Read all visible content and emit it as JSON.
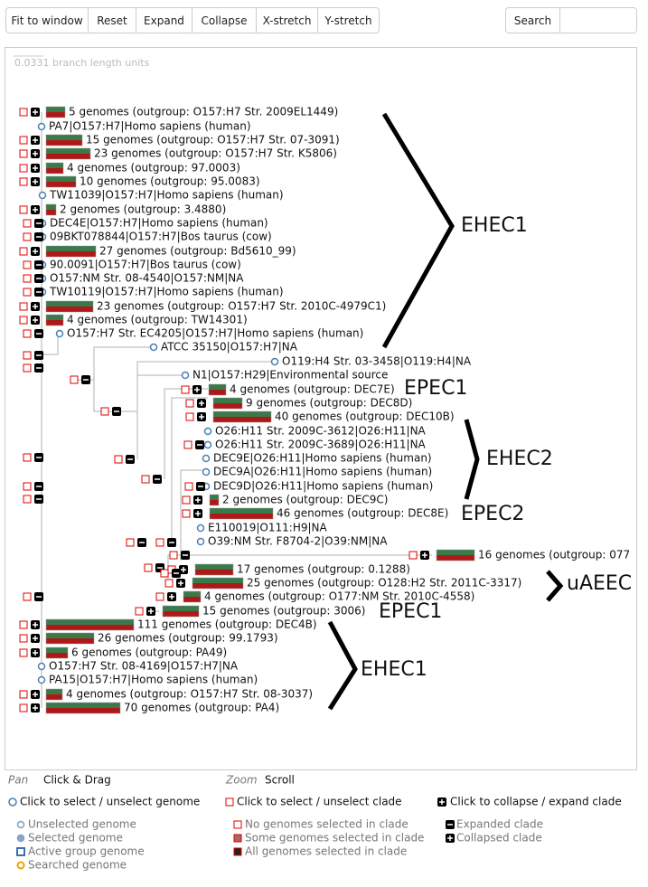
{
  "toolbar": {
    "buttons": [
      "Fit to window",
      "Reset",
      "Expand",
      "Collapse",
      "X-stretch",
      "Y-stretch"
    ],
    "search": "Search"
  },
  "scale_label": "0.0331 branch length units",
  "tree": {
    "rows": [
      "5 genomes (outgroup: O157:H7 Str. 2009EL1449)",
      "PA7|O157:H7|Homo sapiens (human)",
      "15 genomes (outgroup: O157:H7 Str. 07-3091)",
      "23 genomes (outgroup: O157:H7 Str. K5806)",
      "4 genomes (outgroup: 97.0003)",
      "10 genomes (outgroup: 95.0083)",
      "TW11039|O157:H7|Homo sapiens (human)",
      "2 genomes (outgroup: 3.4880)",
      "DEC4E|O157:H7|Homo sapiens (human)",
      "09BKT078844|O157:H7|Bos taurus (cow)",
      "27 genomes (outgroup: Bd5610_99)",
      "90.0091|O157:H7|Bos taurus (cow)",
      "O157:NM Str. 08-4540|O157:NM|NA",
      "TW10119|O157:H7|Homo sapiens (human)",
      "23 genomes (outgroup: O157:H7 Str. 2010C-4979C1)",
      "4 genomes (outgroup: TW14301)",
      "O157:H7 Str. EC4205|O157:H7|Homo sapiens (human)",
      "ATCC 35150|O157:H7|NA",
      "O119:H4 Str. 03-3458|O119:H4|NA",
      "N1|O157:H29|Environmental source",
      "4 genomes (outgroup: DEC7E)",
      "9 genomes (outgroup: DEC8D)",
      "40 genomes (outgroup: DEC10B)",
      "O26:H11 Str. 2009C-3612|O26:H11|NA",
      "O26:H11 Str. 2009C-3689|O26:H11|NA",
      "DEC9E|O26:H11|Homo sapiens (human)",
      "DEC9A|O26:H11|Homo sapiens (human)",
      "DEC9D|O26:H11|Homo sapiens (human)",
      "2 genomes (outgroup: DEC9C)",
      "46 genomes (outgroup: DEC8E)",
      "E110019|O111:H9|NA",
      "O39:NM Str. F8704-2|O39:NM|NA",
      "16 genomes (outgroup: 077",
      "17 genomes (outgroup: 0.1288)",
      "25 genomes (outgroup: O128:H2 Str. 2011C-3317)",
      "4 genomes (outgroup: O177:NM Str. 2010C-4558)",
      "15 genomes (outgroup: 3006)",
      "111 genomes (outgroup: DEC4B)",
      "26 genomes (outgroup: 99.1793)",
      "6 genomes (outgroup: PA49)",
      "O157:H7 Str. 08-4169|O157:H7|NA",
      "PA15|O157:H7|Homo sapiens (human)",
      "4 genomes (outgroup: O157:H7 Str. 08-3037)",
      "70 genomes (outgroup: PA4)"
    ],
    "groups": [
      "EHEC1",
      "EPEC1",
      "EHEC2",
      "EPEC2",
      "uAEEC",
      "EPEC1",
      "EHEC1"
    ]
  },
  "help": {
    "pan_label": "Pan",
    "pan_action": "Click & Drag",
    "zoom_label": "Zoom",
    "zoom_action": "Scroll",
    "instructions": [
      "Click to select / unselect genome",
      "Click to select / unselect clade",
      "Click to collapse / expand clade"
    ],
    "legend": [
      "Unselected genome",
      "Selected genome",
      "Active group genome",
      "Searched genome",
      "No genomes selected in clade",
      "Some genomes selected in clade",
      "All genomes selected in clade",
      "Expanded clade",
      "Collapsed clade"
    ]
  }
}
